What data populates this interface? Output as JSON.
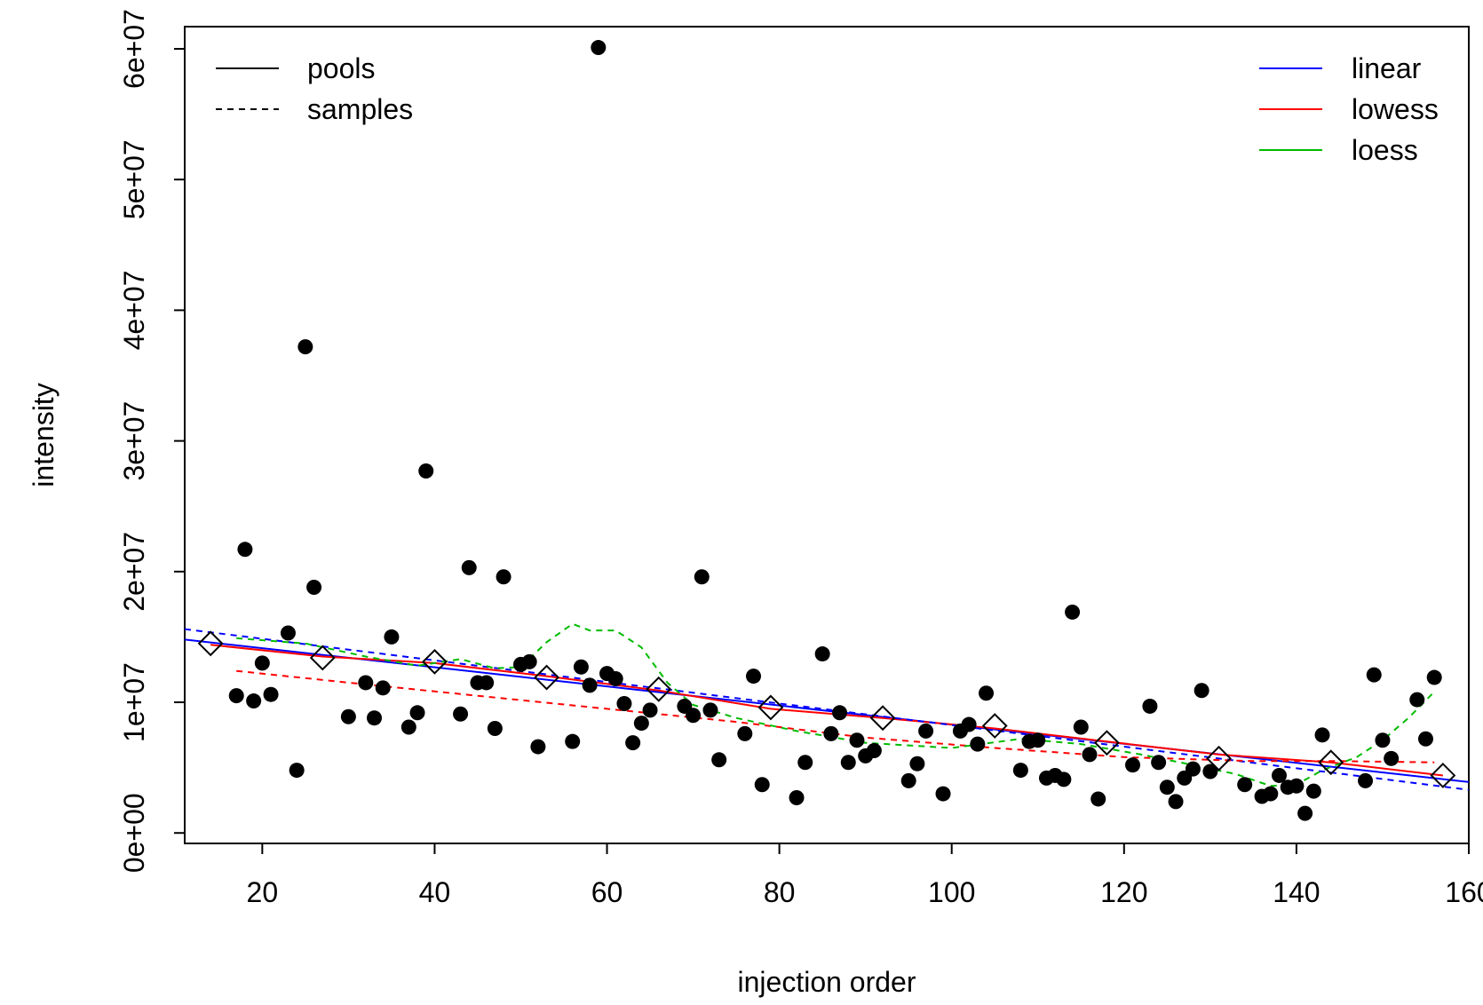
{
  "chart_data": {
    "type": "scatter",
    "title": "",
    "xlabel": "injection order",
    "ylabel": "intensity",
    "xlim": [
      11,
      160
    ],
    "ylim": [
      -800000,
      61700000
    ],
    "x_ticks": [
      20,
      40,
      60,
      80,
      100,
      120,
      140,
      160
    ],
    "y_ticks": [
      0,
      10000000,
      20000000,
      30000000,
      40000000,
      50000000,
      60000000
    ],
    "y_tick_labels": [
      "0e+00",
      "1e+07",
      "2e+07",
      "3e+07",
      "4e+07",
      "5e+07",
      "6e+07"
    ],
    "legend_linetype": {
      "position": "top-left",
      "entries": [
        {
          "label": "pools",
          "linestyle": "solid"
        },
        {
          "label": "samples",
          "linestyle": "dashed"
        }
      ]
    },
    "legend_method": {
      "position": "top-right",
      "entries": [
        {
          "label": "linear",
          "color": "#0000ff"
        },
        {
          "label": "lowess",
          "color": "#ff0000"
        },
        {
          "label": "loess",
          "color": "#00bb00"
        }
      ]
    },
    "samples": {
      "marker": "filled-circle",
      "x": [
        17,
        18,
        19,
        20,
        21,
        23,
        24,
        25,
        26,
        30,
        32,
        33,
        34,
        35,
        37,
        38,
        39,
        43,
        44,
        45,
        46,
        47,
        48,
        50,
        51,
        52,
        56,
        57,
        58,
        59,
        60,
        61,
        62,
        63,
        64,
        65,
        69,
        70,
        71,
        72,
        73,
        76,
        77,
        78,
        82,
        83,
        85,
        86,
        87,
        88,
        89,
        90,
        91,
        95,
        96,
        97,
        99,
        101,
        102,
        103,
        104,
        108,
        109,
        110,
        111,
        112,
        113,
        114,
        115,
        116,
        117,
        121,
        123,
        124,
        125,
        126,
        127,
        128,
        129,
        130,
        134,
        136,
        137,
        138,
        139,
        140,
        141,
        142,
        143,
        148,
        149,
        150,
        151,
        154,
        155,
        156
      ],
      "y": [
        10500000,
        21700000,
        10100000,
        13000000,
        10600000,
        15300000,
        4800000,
        37200000,
        18800000,
        8900000,
        11500000,
        8800000,
        11100000,
        15000000,
        8100000,
        9200000,
        27700000,
        9100000,
        20300000,
        11500000,
        11500000,
        8000000,
        19600000,
        12900000,
        13100000,
        6600000,
        7000000,
        12700000,
        11300000,
        60100000,
        12200000,
        11800000,
        9900000,
        6900000,
        8400000,
        9400000,
        9700000,
        9000000,
        19600000,
        9400000,
        5600000,
        7600000,
        12000000,
        3700000,
        2700000,
        5400000,
        13700000,
        7600000,
        9200000,
        5400000,
        7100000,
        5900000,
        6300000,
        4000000,
        5300000,
        7800000,
        3000000,
        7800000,
        8300000,
        6800000,
        10700000,
        4800000,
        7000000,
        7100000,
        4200000,
        4400000,
        4100000,
        16900000,
        8100000,
        6000000,
        2600000,
        5200000,
        9700000,
        5400000,
        3500000,
        2400000,
        4200000,
        4900000,
        10900000,
        4700000,
        3700000,
        2800000,
        3000000,
        4400000,
        3500000,
        3600000,
        1500000,
        3200000,
        7500000,
        4000000,
        12100000,
        7100000,
        5700000,
        10200000,
        7200000,
        11900000
      ]
    },
    "pools": {
      "marker": "open-diamond",
      "x": [
        14,
        27,
        40,
        53,
        66,
        79,
        92,
        105,
        118,
        131,
        144,
        157
      ],
      "y": [
        14500000,
        13400000,
        13100000,
        11900000,
        11000000,
        9600000,
        8800000,
        8200000,
        6900000,
        5700000,
        5400000,
        4400000
      ]
    },
    "series": [
      {
        "method": "linear",
        "group": "pools",
        "color": "#0000ff",
        "linestyle": "solid",
        "x": [
          11,
          160
        ],
        "y": [
          14800000,
          3900000
        ]
      },
      {
        "method": "lowess",
        "group": "pools",
        "color": "#ff0000",
        "linestyle": "solid",
        "x": [
          14,
          27,
          40,
          53,
          66,
          79,
          92,
          105,
          118,
          131,
          144,
          157
        ],
        "y": [
          14400000,
          13500000,
          13000000,
          12000000,
          10900000,
          9500000,
          8800000,
          8000000,
          7000000,
          6000000,
          5400000,
          4400000
        ]
      },
      {
        "method": "linear",
        "group": "samples",
        "color": "#0000ff",
        "linestyle": "dashed",
        "x": [
          11,
          160
        ],
        "y": [
          15600000,
          3300000
        ]
      },
      {
        "method": "lowess",
        "group": "samples",
        "color": "#ff0000",
        "linestyle": "dashed",
        "x": [
          17,
          30,
          45,
          60,
          75,
          90,
          105,
          120,
          135,
          145,
          156
        ],
        "y": [
          12400000,
          11500000,
          10500000,
          9500000,
          8500000,
          7300000,
          6500000,
          5800000,
          5500000,
          5500000,
          5400000
        ]
      },
      {
        "method": "loess",
        "group": "samples",
        "color": "#00bb00",
        "linestyle": "dashed",
        "x": [
          17,
          25,
          32,
          38,
          43,
          47,
          50,
          53,
          56,
          58,
          61,
          64,
          67,
          70,
          75,
          82,
          90,
          100,
          108,
          115,
          122,
          128,
          133,
          137,
          140,
          143,
          147,
          150,
          153,
          156
        ],
        "y": [
          14900000,
          14500000,
          13500000,
          12800000,
          13300000,
          12600000,
          12700000,
          14600000,
          16000000,
          15500000,
          15500000,
          14200000,
          11500000,
          9800000,
          8800000,
          7800000,
          6900000,
          6500000,
          7200000,
          6800000,
          6000000,
          5200000,
          4500000,
          3600000,
          3700000,
          4800000,
          5800000,
          7100000,
          8800000,
          10800000
        ]
      }
    ]
  }
}
